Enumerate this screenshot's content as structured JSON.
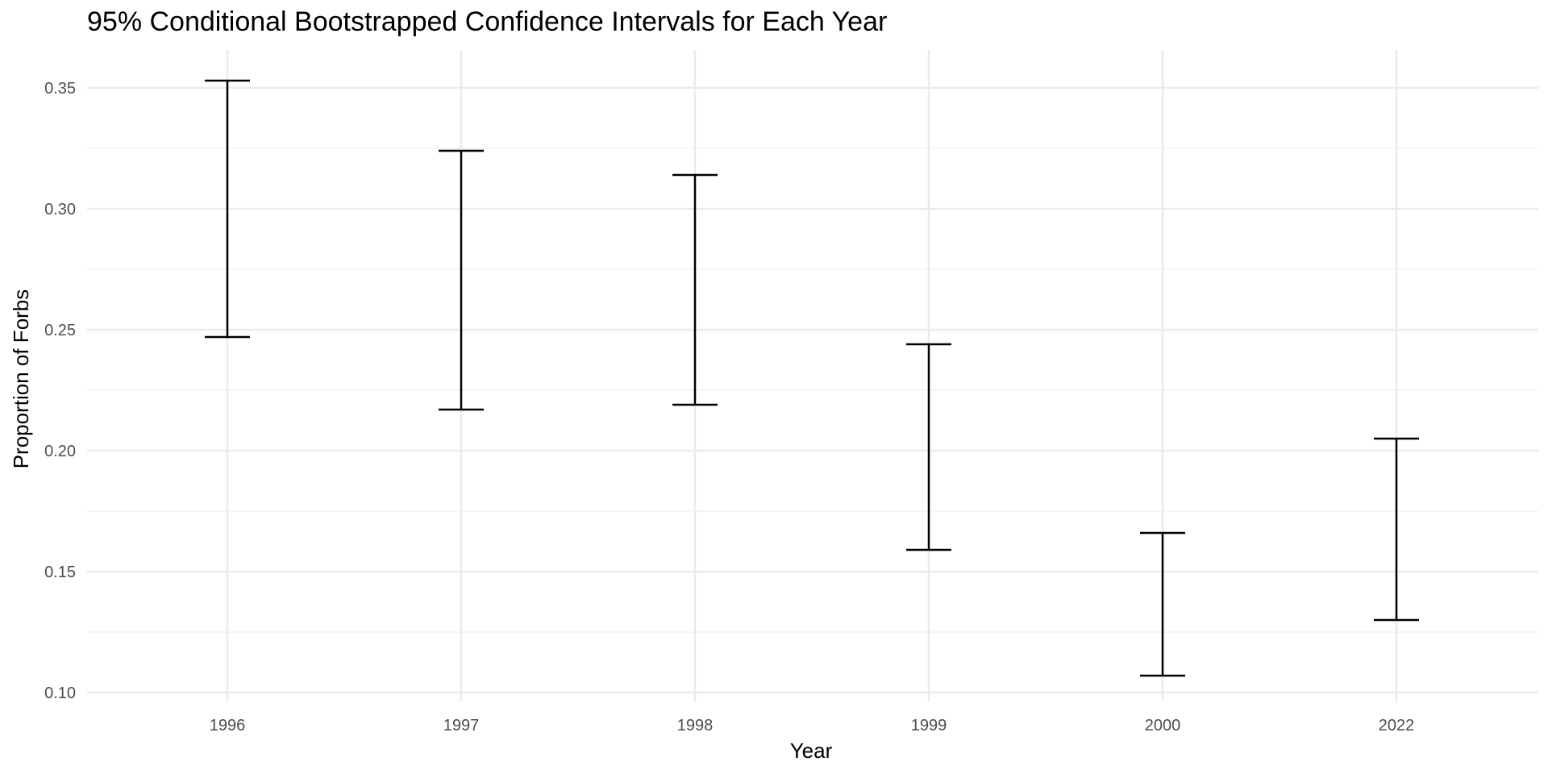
{
  "chart_data": {
    "type": "errorbar",
    "title": "95% Conditional Bootstrapped Confidence Intervals for Each Year",
    "xlabel": "Year",
    "ylabel": "Proportion of Forbs",
    "categories": [
      "1996",
      "1997",
      "1998",
      "1999",
      "2000",
      "2022"
    ],
    "lower": [
      0.247,
      0.217,
      0.219,
      0.159,
      0.107,
      0.13
    ],
    "upper": [
      0.353,
      0.324,
      0.314,
      0.244,
      0.166,
      0.205
    ],
    "ylim": [
      0.1,
      0.35
    ],
    "yticks": [
      "0.10",
      "0.15",
      "0.20",
      "0.25",
      "0.30",
      "0.35"
    ],
    "grid": true,
    "legend": "none",
    "colors": {
      "bar": "#000000",
      "grid": "#ebebeb",
      "background": "#ffffff"
    }
  }
}
